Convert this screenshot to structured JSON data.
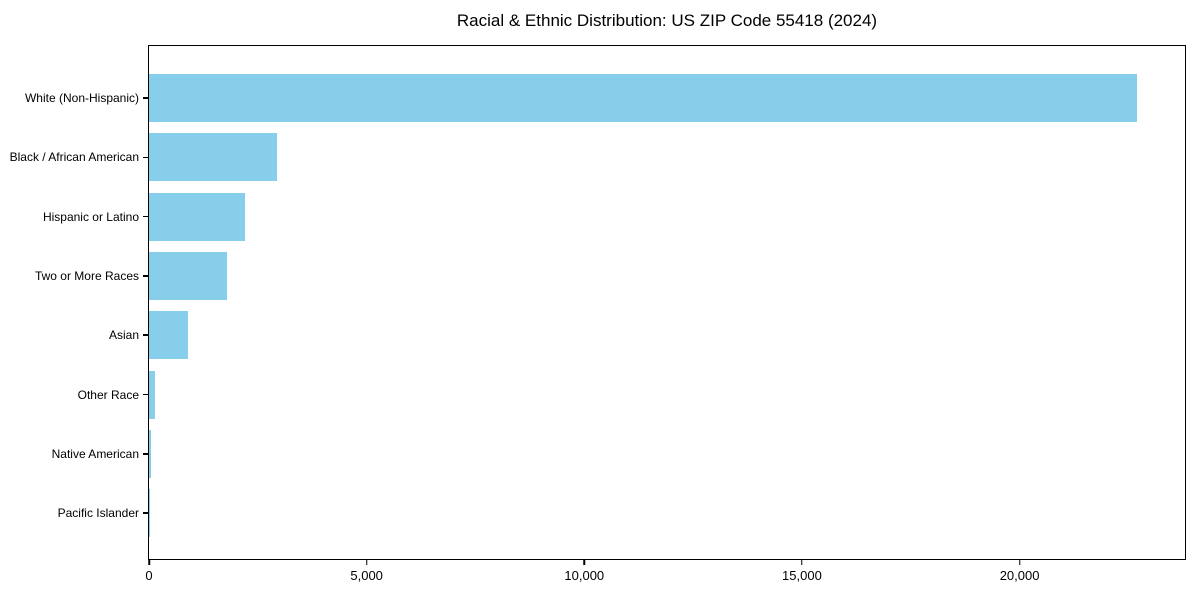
{
  "chart_data": {
    "type": "bar",
    "orientation": "horizontal",
    "title": "Racial & Ethnic Distribution: US ZIP Code 55418 (2024)",
    "categories": [
      "White (Non-Hispanic)",
      "Black / African American",
      "Hispanic or Latino",
      "Two or More Races",
      "Asian",
      "Other Race",
      "Native American",
      "Pacific Islander"
    ],
    "values": [
      22700,
      2930,
      2200,
      1800,
      900,
      130,
      50,
      10
    ],
    "xlabel": "",
    "ylabel": "",
    "xlim": [
      0,
      23800
    ],
    "xticks": [
      0,
      5000,
      10000,
      15000,
      20000
    ],
    "xtick_labels": [
      "0",
      "5,000",
      "10,000",
      "15,000",
      "20,000"
    ],
    "bar_color": "#87CEEB",
    "grid": false,
    "legend_position": "none"
  },
  "colors": {
    "bar": "#87CEEB",
    "axis": "#000000",
    "text": "#000000",
    "background": "#ffffff"
  }
}
